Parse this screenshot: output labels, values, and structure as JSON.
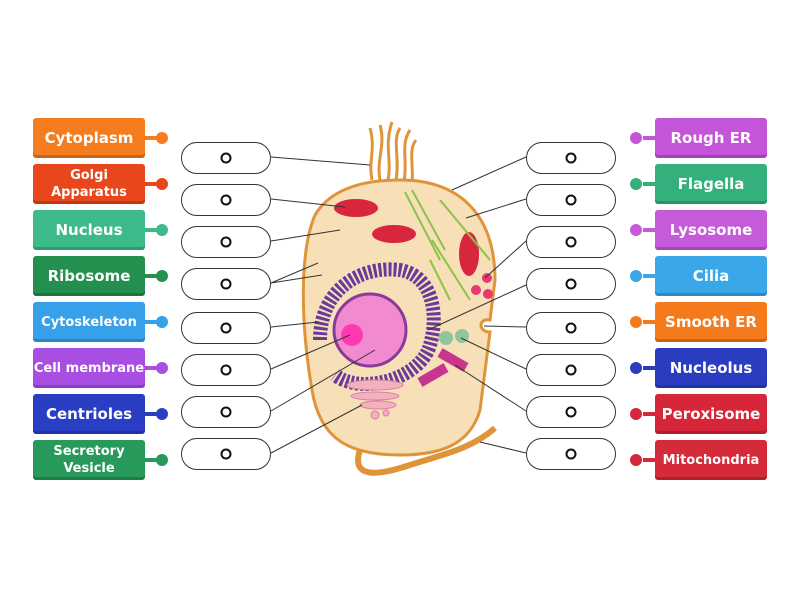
{
  "left_labels": [
    {
      "text": "Cytoplasm",
      "color": "#f57c1f"
    },
    {
      "text": "Golgi Apparatus",
      "color": "#e8461b"
    },
    {
      "text": "Nucleus",
      "color": "#3dba8a"
    },
    {
      "text": "Ribosome",
      "color": "#24904f"
    },
    {
      "text": "Cytoskeleton",
      "color": "#36a0ea"
    },
    {
      "text": "Cell membrane",
      "color": "#a84ee2"
    },
    {
      "text": "Centrioles",
      "color": "#2a3ec4"
    },
    {
      "text": "Secretory Vesicle",
      "color": "#27995a"
    }
  ],
  "right_labels": [
    {
      "text": "Rough ER",
      "color": "#c455d8"
    },
    {
      "text": "Flagella",
      "color": "#34b07c"
    },
    {
      "text": "Lysosome",
      "color": "#c55bd9"
    },
    {
      "text": "Cilia",
      "color": "#3aa8e8"
    },
    {
      "text": "Smooth ER",
      "color": "#f57a1c"
    },
    {
      "text": "Nucleolus",
      "color": "#2a3cc0"
    },
    {
      "text": "Peroxisome",
      "color": "#d6263a"
    },
    {
      "text": "Mitochondria",
      "color": "#d42a3a"
    }
  ]
}
